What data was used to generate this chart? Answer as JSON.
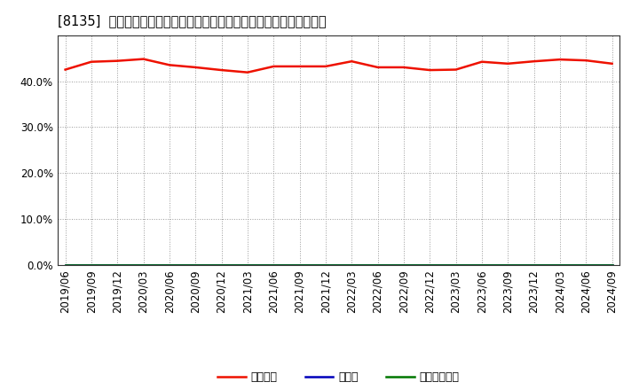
{
  "title": "[8135]  自己資本、のれん、繰延税金資産の総資産に対する比率の推移",
  "x_labels": [
    "2019/06",
    "2019/09",
    "2019/12",
    "2020/03",
    "2020/06",
    "2020/09",
    "2020/12",
    "2021/03",
    "2021/06",
    "2021/09",
    "2021/12",
    "2022/03",
    "2022/06",
    "2022/09",
    "2022/12",
    "2023/03",
    "2023/06",
    "2023/09",
    "2023/12",
    "2024/03",
    "2024/06",
    "2024/09"
  ],
  "jikoshihon": [
    0.425,
    0.442,
    0.444,
    0.448,
    0.435,
    0.43,
    0.424,
    0.419,
    0.432,
    0.432,
    0.432,
    0.443,
    0.43,
    0.43,
    0.424,
    0.425,
    0.442,
    0.438,
    0.443,
    0.447,
    0.445,
    0.438
  ],
  "noren": [
    0.0,
    0.0,
    0.0,
    0.0,
    0.0,
    0.0,
    0.0,
    0.0,
    0.0,
    0.0,
    0.0,
    0.0,
    0.0,
    0.0,
    0.0,
    0.0,
    0.0,
    0.0,
    0.0,
    0.0,
    0.0,
    0.0
  ],
  "kurinobe": [
    0.0,
    0.0,
    0.0,
    0.0,
    0.0,
    0.0,
    0.0,
    0.0,
    0.0,
    0.0,
    0.0,
    0.0,
    0.0,
    0.0,
    0.0,
    0.0,
    0.0,
    0.0,
    0.0,
    0.0,
    0.0,
    0.0
  ],
  "jikoshihon_color": "#ee1100",
  "noren_color": "#0000bb",
  "kurinobe_color": "#007700",
  "legend_jikoshihon": "自己資本",
  "legend_noren": "のれん",
  "legend_kurinobe": "繰延税金資産",
  "ylim_min": 0.0,
  "ylim_max": 0.5,
  "yticks": [
    0.0,
    0.1,
    0.2,
    0.3,
    0.4
  ],
  "background_color": "#ffffff",
  "plot_bg_color": "#ffffff",
  "grid_color": "#999999",
  "title_fontsize": 10.5,
  "tick_fontsize": 8.5,
  "legend_fontsize": 9
}
